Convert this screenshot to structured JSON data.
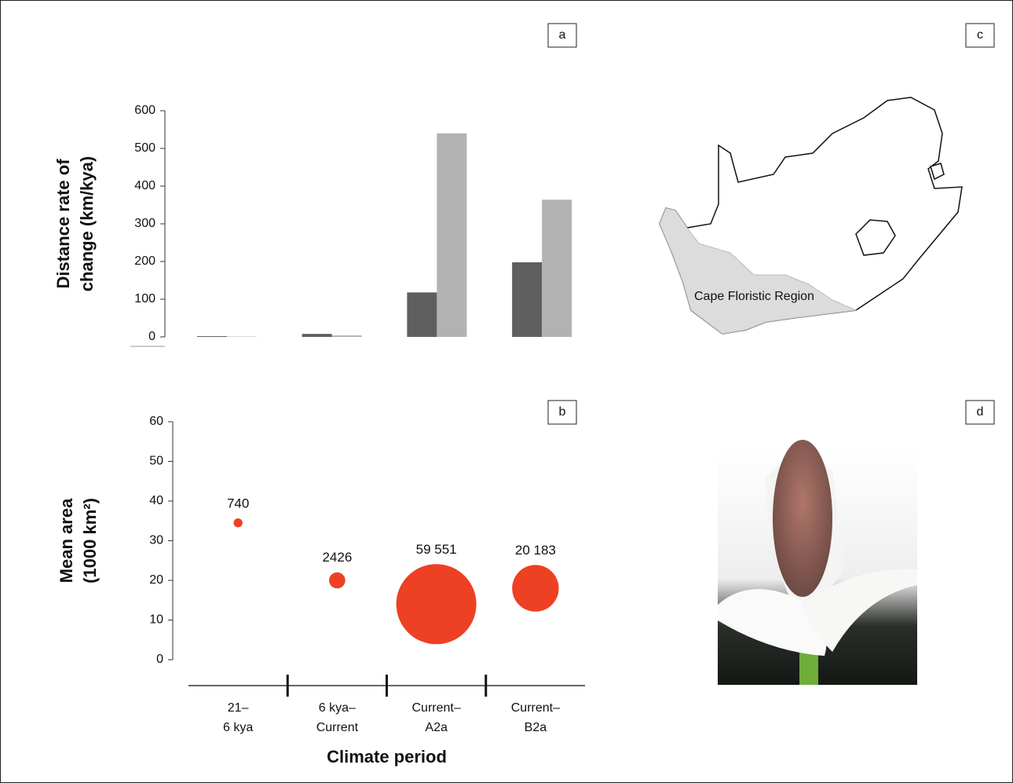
{
  "chart_data": [
    {
      "type": "bar",
      "panel_label": "a",
      "ylabel": [
        "Distance rate of",
        "change (km/kya)"
      ],
      "categories": [
        null,
        null,
        null,
        null
      ],
      "series": [
        {
          "color": "#5f5f5f",
          "values": [
            2,
            8,
            118,
            198
          ]
        },
        {
          "color": "#b2b2b2",
          "values": [
            1,
            4,
            540,
            364
          ]
        }
      ],
      "ylim": [
        0,
        600
      ],
      "yticks": [
        0,
        100,
        200,
        300,
        400,
        500,
        600
      ]
    },
    {
      "type": "bubble",
      "panel_label": "b",
      "ylabel": [
        "Mean area",
        "(1000 km²)"
      ],
      "xlabel": "Climate period",
      "categories": [
        "21–6 kya",
        "6 kya–Current",
        "Current–A2a",
        "Current–B2a"
      ],
      "values": [
        34.5,
        20,
        14,
        18
      ],
      "sizes": [
        740,
        2426,
        59551,
        20183
      ],
      "value_labels": [
        "740",
        "2426",
        "59 551",
        "20 183"
      ],
      "color": "#ee4023",
      "ylim": [
        0,
        60
      ],
      "yticks": [
        0,
        10,
        20,
        30,
        40,
        50,
        60
      ]
    }
  ],
  "map": {
    "panel_label": "c",
    "region_label": "Cape Floristic Region"
  },
  "photo": {
    "panel_label": "d"
  }
}
